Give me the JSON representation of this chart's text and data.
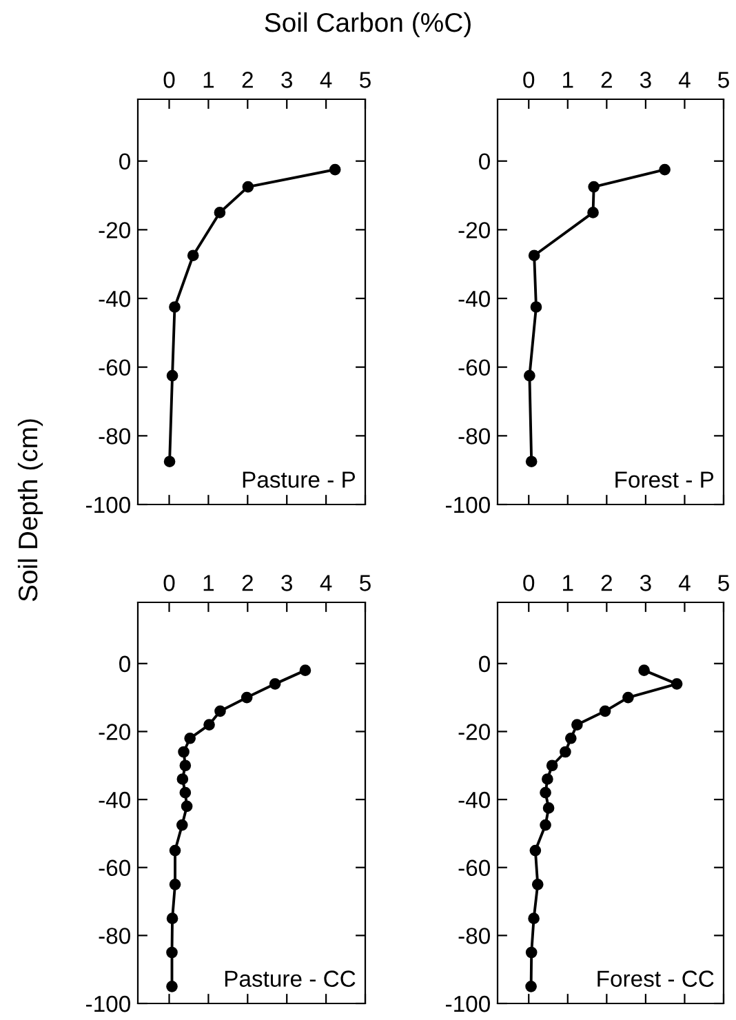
{
  "chart_data": [
    {
      "type": "line",
      "xlabel": "Soil Carbon (%C)",
      "ylabel": "Soil Depth (cm)",
      "annotations": [
        "Pasture - P"
      ],
      "xlim": [
        -0.8,
        5
      ],
      "xticks": [
        0,
        1,
        2,
        3,
        4,
        5
      ],
      "ylim": [
        -100,
        18
      ],
      "yticks": [
        -100,
        -80,
        -60,
        -40,
        -20,
        0
      ],
      "grid": false,
      "legend": false,
      "marker": "circle",
      "line_style": "solid",
      "series": [
        {
          "color": "#000000",
          "x": [
            4.23,
            2.01,
            1.29,
            0.61,
            0.14,
            0.08,
            0.01
          ],
          "values": [
            -2.5,
            -7.5,
            -15,
            -27.5,
            -42.5,
            -62.5,
            -87.5
          ]
        }
      ]
    },
    {
      "type": "line",
      "annotations": [
        "Forest - P"
      ],
      "xlim": [
        -0.8,
        5
      ],
      "xticks": [
        0,
        1,
        2,
        3,
        4,
        5
      ],
      "ylim": [
        -100,
        18
      ],
      "yticks": [
        -100,
        -80,
        -60,
        -40,
        -20,
        0
      ],
      "grid": false,
      "legend": false,
      "marker": "circle",
      "line_style": "solid",
      "series": [
        {
          "color": "#000000",
          "x": [
            3.49,
            1.67,
            1.65,
            0.14,
            0.19,
            0.02,
            0.07
          ],
          "values": [
            -2.5,
            -7.5,
            -15,
            -27.5,
            -42.5,
            -62.5,
            -87.5
          ]
        }
      ]
    },
    {
      "type": "line",
      "annotations": [
        "Pasture - CC"
      ],
      "xlim": [
        -0.8,
        5
      ],
      "xticks": [
        0,
        1,
        2,
        3,
        4,
        5
      ],
      "ylim": [
        -100,
        18
      ],
      "yticks": [
        -100,
        -80,
        -60,
        -40,
        -20,
        0
      ],
      "grid": false,
      "legend": false,
      "marker": "circle",
      "line_style": "solid",
      "series": [
        {
          "color": "#000000",
          "x": [
            3.47,
            2.7,
            1.98,
            1.3,
            1.02,
            0.53,
            0.37,
            0.41,
            0.34,
            0.41,
            0.45,
            0.33,
            0.15,
            0.15,
            0.08,
            0.07,
            0.07
          ],
          "values": [
            -2,
            -6,
            -10,
            -14,
            -18,
            -22,
            -26,
            -30,
            -34,
            -38,
            -42,
            -47.5,
            -55,
            -65,
            -75,
            -85,
            -95
          ]
        }
      ]
    },
    {
      "type": "line",
      "annotations": [
        "Forest - CC"
      ],
      "xlim": [
        -0.8,
        5
      ],
      "xticks": [
        0,
        1,
        2,
        3,
        4,
        5
      ],
      "ylim": [
        -100,
        18
      ],
      "yticks": [
        -100,
        -80,
        -60,
        -40,
        -20,
        0
      ],
      "grid": false,
      "legend": false,
      "marker": "circle",
      "line_style": "solid",
      "series": [
        {
          "color": "#000000",
          "x": [
            2.96,
            3.8,
            2.55,
            1.96,
            1.24,
            1.08,
            0.94,
            0.6,
            0.48,
            0.43,
            0.51,
            0.43,
            0.17,
            0.23,
            0.13,
            0.07,
            0.06
          ],
          "values": [
            -2,
            -6,
            -10,
            -14,
            -18,
            -22,
            -26,
            -30,
            -34,
            -38,
            -42.5,
            -47.5,
            -55,
            -65,
            -75,
            -85,
            -95
          ]
        }
      ]
    }
  ]
}
